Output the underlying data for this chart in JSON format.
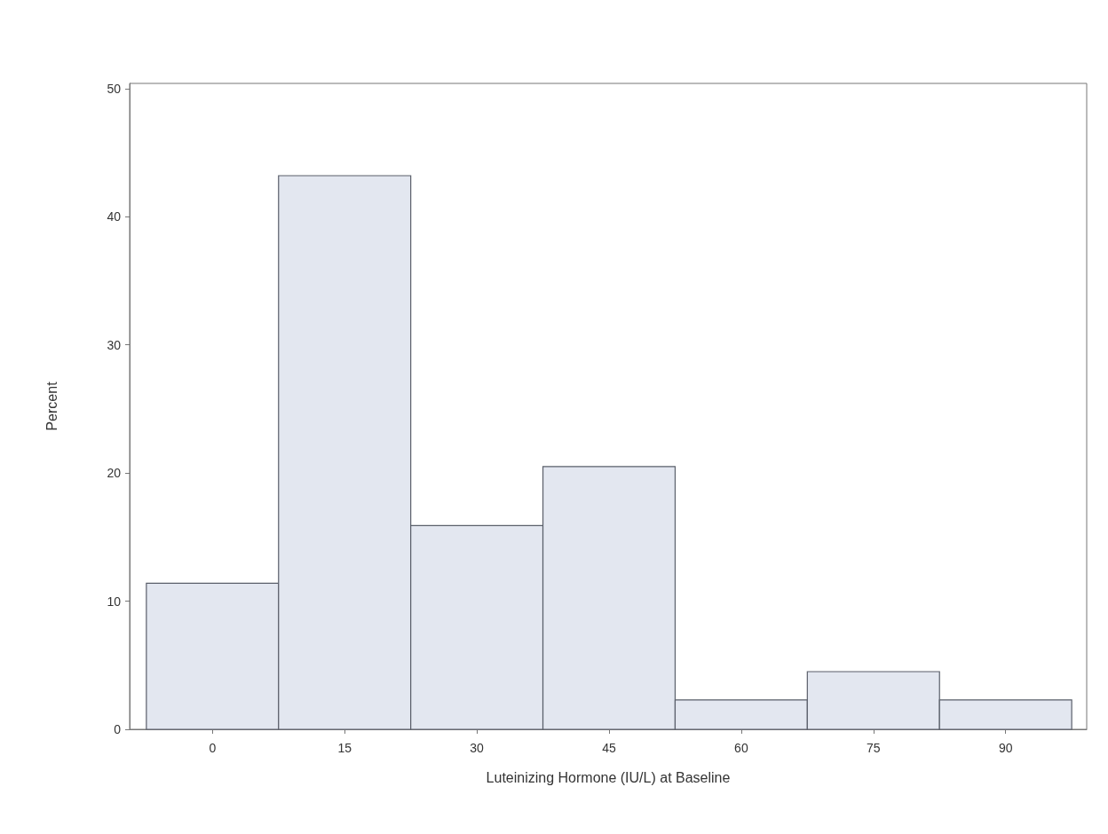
{
  "chart_data": {
    "type": "histogram",
    "xlabel": "Luteinizing Hormone (IU/L) at Baseline",
    "ylabel": "Percent",
    "bins": [
      -7.5,
      7.5,
      22.5,
      37.5,
      52.5,
      67.5,
      82.5,
      97.5
    ],
    "values": [
      11.4,
      43.2,
      15.9,
      20.5,
      2.3,
      4.5,
      2.3
    ],
    "color": "#e3e7f0",
    "xlim": [
      -9.4,
      99.2
    ],
    "xticks": [
      0,
      15,
      30,
      45,
      60,
      75,
      90
    ],
    "ylim": [
      0,
      50.4
    ],
    "yticks": [
      0,
      10,
      20,
      30,
      40,
      50
    ]
  }
}
